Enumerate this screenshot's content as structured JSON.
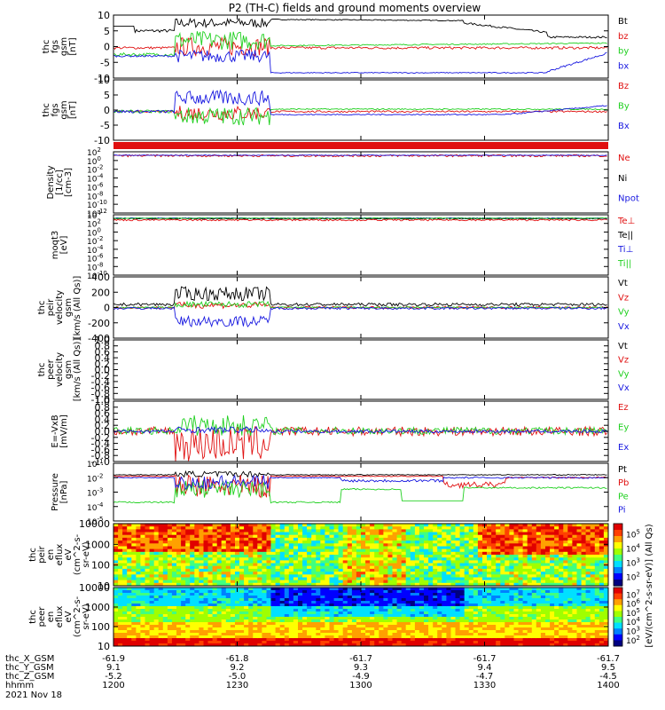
{
  "title": "P2 (TH-C) fields and ground moments overview",
  "colors": {
    "black": "#000000",
    "red": "#e01010",
    "green": "#20d020",
    "blue": "#1818e0"
  },
  "chart_data": [
    {
      "type": "line",
      "ylabel": [
        "thc",
        "fgs",
        "gsm",
        "[nT]"
      ],
      "ylim": [
        -10,
        10
      ],
      "yticks": [
        "10",
        "5",
        "0",
        "-5",
        "-10"
      ],
      "series": [
        {
          "name": "Bt",
          "color": "black"
        },
        {
          "name": "bz",
          "color": "red"
        },
        {
          "name": "by",
          "color": "green"
        },
        {
          "name": "bx",
          "color": "blue"
        }
      ]
    },
    {
      "type": "line",
      "ylabel": [
        "thc",
        "fgs",
        "gsm",
        "[nT]"
      ],
      "ylim": [
        -10,
        10
      ],
      "yticks": [
        "10",
        "5",
        "0",
        "-5",
        "-10"
      ],
      "series": [
        {
          "name": "Bz",
          "color": "red"
        },
        {
          "name": "By",
          "color": "green"
        },
        {
          "name": "Bx",
          "color": "blue"
        }
      ]
    },
    {
      "type": "line",
      "ylabel": [
        "Density",
        "[1/cc]",
        "[cm-3]"
      ],
      "yticks": [
        "10^2",
        "10^0",
        "10^-2",
        "10^-4",
        "10^-6",
        "10^-8",
        "10^-10",
        "10^-12"
      ],
      "series": [
        {
          "name": "Ne",
          "color": "red"
        },
        {
          "name": "Ni",
          "color": "black"
        },
        {
          "name": "Npot",
          "color": "blue"
        }
      ]
    },
    {
      "type": "line",
      "ylabel": [
        "moqt3",
        "[eV]"
      ],
      "yticks": [
        "10^4",
        "10^2",
        "10^0",
        "10^-2",
        "10^-4",
        "10^-6",
        "10^-8",
        "10^-10"
      ],
      "series": [
        {
          "name": "Te⊥",
          "color": "red"
        },
        {
          "name": "Te||",
          "color": "black"
        },
        {
          "name": "Ti⊥",
          "color": "blue"
        },
        {
          "name": "Ti||",
          "color": "green"
        }
      ]
    },
    {
      "type": "line",
      "ylabel": [
        "thc",
        "peir",
        "velocity",
        "gsm",
        "[km/s (All Qs)]"
      ],
      "ylim": [
        -400,
        400
      ],
      "yticks": [
        "400",
        "200",
        "0",
        "-200",
        "-400"
      ],
      "series": [
        {
          "name": "Vt",
          "color": "black"
        },
        {
          "name": "Vz",
          "color": "red"
        },
        {
          "name": "Vy",
          "color": "green"
        },
        {
          "name": "Vx",
          "color": "blue"
        }
      ]
    },
    {
      "type": "line",
      "ylabel": [
        "thc",
        "peer",
        "velocity",
        "gsm",
        "[km/s (All Qs)]"
      ],
      "ylim": [
        -1,
        1
      ],
      "yticks": [
        "1.0",
        "0.8",
        "0.6",
        "0.4",
        "0.2",
        "0.0",
        "-0.2",
        "-0.4",
        "-0.6",
        "-0.8",
        "-1.0"
      ],
      "series": [
        {
          "name": "Vt",
          "color": "black"
        },
        {
          "name": "Vz",
          "color": "red"
        },
        {
          "name": "Vy",
          "color": "green"
        },
        {
          "name": "Vx",
          "color": "blue"
        }
      ]
    },
    {
      "type": "line",
      "ylabel": [
        "E=-VxB",
        "[mV/m]"
      ],
      "ylim": [
        -1,
        1
      ],
      "yticks": [
        "1.0",
        "0.8",
        "0.6",
        "0.4",
        "0.2",
        "0.0",
        "-0.2",
        "-0.4",
        "-0.6",
        "-0.8",
        "-1.0"
      ],
      "series": [
        {
          "name": "Ez",
          "color": "red"
        },
        {
          "name": "Ey",
          "color": "green"
        },
        {
          "name": "Ex",
          "color": "blue"
        }
      ]
    },
    {
      "type": "line",
      "ylabel": [
        "Pressure",
        "[nPa]"
      ],
      "yticks": [
        "10^-1",
        "10^-2",
        "10^-3",
        "10^-4",
        "10^-5"
      ],
      "series": [
        {
          "name": "Pt",
          "color": "black"
        },
        {
          "name": "Pb",
          "color": "red"
        },
        {
          "name": "Pe",
          "color": "green"
        },
        {
          "name": "Pi",
          "color": "blue"
        }
      ]
    },
    {
      "type": "heatmap",
      "ylabel": [
        "thc",
        "peir",
        "en",
        "eflux",
        "eV",
        "(cm^2-s-",
        "sr-eV)"
      ],
      "yticks": [
        "10000",
        "1000",
        "100",
        "10"
      ],
      "colorbar_ticks": [
        "10^5",
        "10^4",
        "10^3",
        "10^2"
      ]
    },
    {
      "type": "heatmap",
      "ylabel": [
        "thc",
        "peer",
        "en",
        "eflux",
        "eV",
        "(cm^2-s-",
        "sr-eV)"
      ],
      "yticks": [
        "10000",
        "1000",
        "100",
        "10"
      ],
      "colorbar_ticks": [
        "10^7",
        "10^6",
        "10^5",
        "10^4",
        "10^3",
        "10^2"
      ]
    }
  ],
  "colorbar_label": "[eV/(cm^2-s-sr-eV)] (All Qs)",
  "x_axis": {
    "row_labels": [
      "thc_X_GSM",
      "thc_Y_GSM",
      "thc_Z_GSM",
      "hhmm",
      "2021 Nov 18"
    ],
    "ticks": [
      {
        "t": 0,
        "X": "-61.9",
        "Y": "9.1",
        "Z": "-5.2",
        "hhmm": "1200"
      },
      {
        "t": 30,
        "X": "-61.8",
        "Y": "9.2",
        "Z": "-5.0",
        "hhmm": "1230"
      },
      {
        "t": 60,
        "X": "-61.7",
        "Y": "9.3",
        "Z": "-4.9",
        "hhmm": "1300"
      },
      {
        "t": 90,
        "X": "-61.7",
        "Y": "9.4",
        "Z": "-4.7",
        "hhmm": "1330"
      },
      {
        "t": 120,
        "X": "-61.7",
        "Y": "9.5",
        "Z": "-4.5",
        "hhmm": "1400"
      }
    ]
  }
}
